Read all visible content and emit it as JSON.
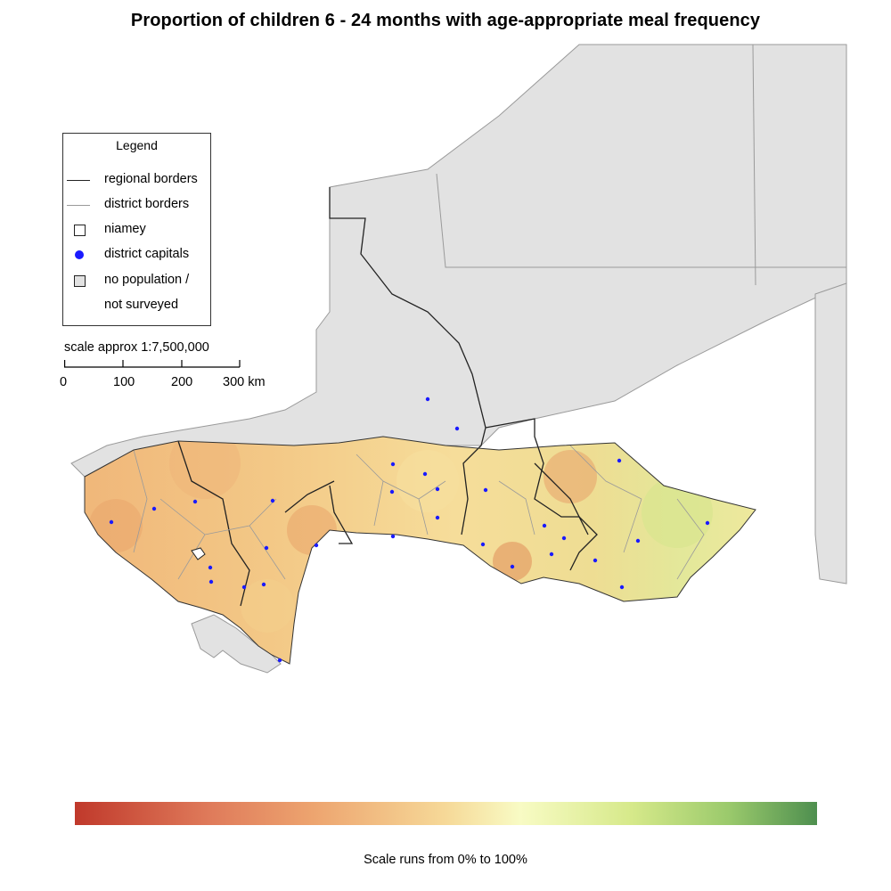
{
  "title": "Proportion of children 6 - 24 months with age-appropriate meal frequency",
  "legend": {
    "title": "Legend",
    "items": [
      {
        "label": "regional borders",
        "symbol": "dark-line"
      },
      {
        "label": "district borders",
        "symbol": "grey-line"
      },
      {
        "label": "niamey",
        "symbol": "empty-box"
      },
      {
        "label": "district capitals",
        "symbol": "blue-dot"
      },
      {
        "label": "no population /",
        "symbol": "grey-box"
      },
      {
        "label": "not surveyed",
        "symbol": "none"
      }
    ]
  },
  "scale": {
    "text": "scale approx 1:7,500,000",
    "labels": [
      "0",
      "100",
      "200",
      "300 km"
    ]
  },
  "colorbar": {
    "note": "Scale runs from 0% to 100%",
    "colors": [
      "#c0392b",
      "#eda46f",
      "#f6d998",
      "#f8fbc4",
      "#9bca6c",
      "#4e8f4f"
    ]
  },
  "colors": {
    "background_land": "#e2e2e2",
    "capital_dot": "#1a1aff",
    "regional_border": "#222222",
    "district_border": "#9a9a9a"
  }
}
